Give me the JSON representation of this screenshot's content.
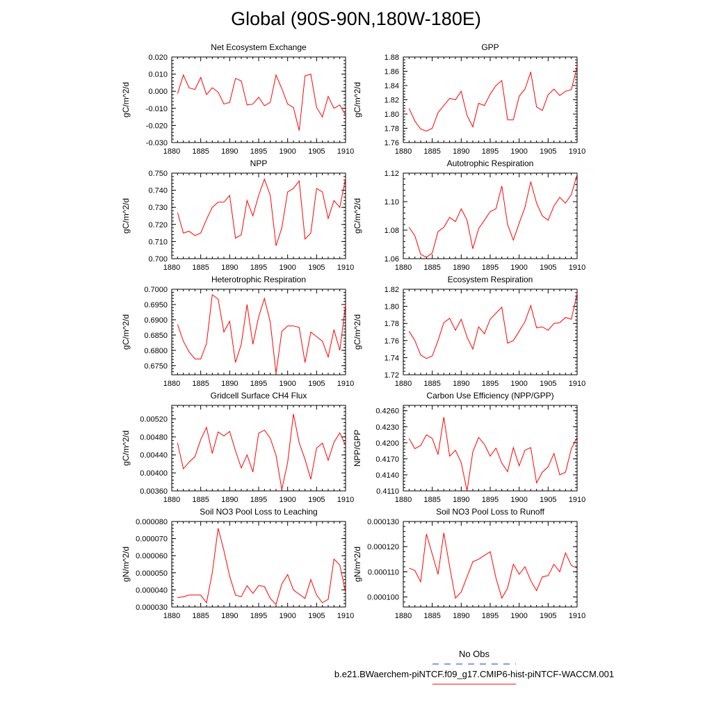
{
  "title": "Global (90S-90N,180W-180E)",
  "legend": {
    "obs_label": "No Obs",
    "obs_color": "#2b2bd9",
    "case_label": "b.e21.BWaerchem-piNTCF.f09_g17.CMIP6-hist-piNTCF-WACCM.001",
    "case_color": "#ff0000"
  },
  "chart_data": [
    {
      "type": "line",
      "title": "Net Ecosystem Exchange",
      "ylabel": "gC/m^2/d",
      "xlim": [
        1880,
        1910
      ],
      "ylim": [
        -0.03,
        0.02
      ],
      "x_ticks": [
        "1880",
        "1885",
        "1890",
        "1895",
        "1900",
        "1905",
        "1910"
      ],
      "y_ticks": [
        "-0.030",
        "-0.020",
        "-0.010",
        "0.000",
        "0.010",
        "0.020"
      ],
      "y_tick_values": [
        -0.03,
        -0.02,
        -0.01,
        0,
        0.01,
        0.02
      ],
      "x_start": 1881,
      "values": [
        -0.0015,
        0.0095,
        0.002,
        0.001,
        0.008,
        -0.002,
        0.002,
        -0.0005,
        -0.0075,
        -0.0065,
        0.0075,
        0.006,
        -0.008,
        -0.0075,
        -0.0035,
        -0.0085,
        -0.0065,
        0.0095,
        0.0015,
        -0.0075,
        -0.0095,
        -0.023,
        0.009,
        0.01,
        -0.0095,
        -0.015,
        -0.003,
        -0.01,
        -0.008,
        -0.014
      ]
    },
    {
      "type": "line",
      "title": "GPP",
      "ylabel": "gC/m^2/d",
      "xlim": [
        1880,
        1910
      ],
      "ylim": [
        1.76,
        1.88
      ],
      "x_ticks": [
        "1880",
        "1885",
        "1890",
        "1895",
        "1900",
        "1905",
        "1910"
      ],
      "y_ticks": [
        "1.76",
        "1.78",
        "1.80",
        "1.82",
        "1.84",
        "1.86",
        "1.88"
      ],
      "y_tick_values": [
        1.76,
        1.78,
        1.8,
        1.82,
        1.84,
        1.86,
        1.88
      ],
      "x_start": 1881,
      "values": [
        1.808,
        1.79,
        1.779,
        1.776,
        1.78,
        1.802,
        1.812,
        1.822,
        1.82,
        1.832,
        1.798,
        1.782,
        1.815,
        1.812,
        1.828,
        1.84,
        1.847,
        1.792,
        1.792,
        1.825,
        1.835,
        1.859,
        1.81,
        1.805,
        1.827,
        1.835,
        1.826,
        1.832,
        1.834,
        1.867
      ]
    },
    {
      "type": "line",
      "title": "NPP",
      "ylabel": "gC/m^2/d",
      "xlim": [
        1880,
        1910
      ],
      "ylim": [
        0.7,
        0.75
      ],
      "x_ticks": [
        "1880",
        "1885",
        "1890",
        "1895",
        "1900",
        "1905",
        "1910"
      ],
      "y_ticks": [
        "0.700",
        "0.710",
        "0.720",
        "0.730",
        "0.740",
        "0.750"
      ],
      "y_tick_values": [
        0.7,
        0.71,
        0.72,
        0.73,
        0.74,
        0.75
      ],
      "x_start": 1881,
      "values": [
        0.727,
        0.715,
        0.716,
        0.7135,
        0.715,
        0.723,
        0.73,
        0.733,
        0.733,
        0.737,
        0.712,
        0.714,
        0.734,
        0.725,
        0.737,
        0.7465,
        0.737,
        0.7075,
        0.718,
        0.739,
        0.741,
        0.7455,
        0.7115,
        0.715,
        0.741,
        0.739,
        0.7235,
        0.734,
        0.73,
        0.747
      ]
    },
    {
      "type": "line",
      "title": "Autotrophic Respiration",
      "ylabel": "gC/m^2/d",
      "xlim": [
        1880,
        1910
      ],
      "ylim": [
        1.06,
        1.12
      ],
      "x_ticks": [
        "1880",
        "1885",
        "1890",
        "1895",
        "1900",
        "1905",
        "1910"
      ],
      "y_ticks": [
        "1.06",
        "1.08",
        "1.10",
        "1.12"
      ],
      "y_tick_values": [
        1.06,
        1.08,
        1.1,
        1.12
      ],
      "x_start": 1881,
      "values": [
        1.082,
        1.076,
        1.063,
        1.061,
        1.064,
        1.079,
        1.082,
        1.089,
        1.086,
        1.095,
        1.087,
        1.067,
        1.081,
        1.087,
        1.093,
        1.095,
        1.111,
        1.084,
        1.073,
        1.085,
        1.096,
        1.114,
        1.099,
        1.09,
        1.087,
        1.097,
        1.103,
        1.099,
        1.105,
        1.119
      ]
    },
    {
      "type": "line",
      "title": "Heterotrophic Respiration",
      "ylabel": "gC/m^2/d",
      "xlim": [
        1880,
        1910
      ],
      "ylim": [
        0.672,
        0.7
      ],
      "x_ticks": [
        "1880",
        "1885",
        "1890",
        "1895",
        "1900",
        "1905",
        "1910"
      ],
      "y_ticks": [
        "0.6750",
        "0.6800",
        "0.6850",
        "0.6900",
        "0.6950",
        "0.7000"
      ],
      "y_tick_values": [
        0.675,
        0.68,
        0.685,
        0.69,
        0.695,
        0.7
      ],
      "x_start": 1881,
      "values": [
        0.6885,
        0.683,
        0.6795,
        0.6772,
        0.6772,
        0.6822,
        0.6982,
        0.6968,
        0.686,
        0.6895,
        0.676,
        0.682,
        0.695,
        0.682,
        0.691,
        0.697,
        0.6892,
        0.6725,
        0.6862,
        0.688,
        0.688,
        0.6875,
        0.676,
        0.686,
        0.6845,
        0.683,
        0.6778,
        0.6868,
        0.68,
        0.695
      ]
    },
    {
      "type": "line",
      "title": "Ecosystem Respiration",
      "ylabel": "gC/m^2/d",
      "xlim": [
        1880,
        1910
      ],
      "ylim": [
        1.72,
        1.82
      ],
      "x_ticks": [
        "1880",
        "1885",
        "1890",
        "1895",
        "1900",
        "1905",
        "1910"
      ],
      "y_ticks": [
        "1.72",
        "1.74",
        "1.76",
        "1.78",
        "1.80",
        "1.82"
      ],
      "y_tick_values": [
        1.72,
        1.74,
        1.76,
        1.78,
        1.8,
        1.82
      ],
      "x_start": 1881,
      "values": [
        1.771,
        1.76,
        1.743,
        1.739,
        1.742,
        1.76,
        1.781,
        1.786,
        1.772,
        1.785,
        1.764,
        1.75,
        1.776,
        1.768,
        1.785,
        1.792,
        1.799,
        1.757,
        1.76,
        1.771,
        1.782,
        1.801,
        1.775,
        1.776,
        1.772,
        1.78,
        1.781,
        1.787,
        1.785,
        1.815
      ]
    },
    {
      "type": "line",
      "title": "Gridcell Surface CH4 Flux",
      "ylabel": "gC/m^2/d",
      "xlim": [
        1880,
        1910
      ],
      "ylim": [
        0.0036,
        0.0055
      ],
      "x_ticks": [
        "1880",
        "1885",
        "1890",
        "1895",
        "1900",
        "1905",
        "1910"
      ],
      "y_ticks": [
        "0.00360",
        "0.00400",
        "0.00440",
        "0.00480",
        "0.00520"
      ],
      "y_tick_values": [
        0.0036,
        0.004,
        0.0044,
        0.0048,
        0.0052
      ],
      "x_start": 1881,
      "values": [
        0.00467,
        0.00409,
        0.00424,
        0.00436,
        0.00474,
        0.00501,
        0.00443,
        0.00491,
        0.00482,
        0.00492,
        0.00449,
        0.00411,
        0.0044,
        0.00402,
        0.00488,
        0.00495,
        0.00477,
        0.00439,
        0.00363,
        0.00423,
        0.00531,
        0.00467,
        0.0043,
        0.00386,
        0.00455,
        0.00466,
        0.00428,
        0.00468,
        0.00489,
        0.00461
      ]
    },
    {
      "type": "line",
      "title": "Carbon Use Efficiency (NPP/GPP)",
      "ylabel": "NPP/GPP",
      "xlim": [
        1880,
        1910
      ],
      "ylim": [
        0.411,
        0.427
      ],
      "x_ticks": [
        "1880",
        "1885",
        "1890",
        "1895",
        "1900",
        "1905",
        "1910"
      ],
      "y_ticks": [
        "0.4110",
        "0.4140",
        "0.4170",
        "0.4200",
        "0.4230",
        "0.4260"
      ],
      "y_tick_values": [
        0.411,
        0.414,
        0.417,
        0.42,
        0.423,
        0.426
      ],
      "x_start": 1881,
      "values": [
        0.4208,
        0.4189,
        0.4195,
        0.4215,
        0.4208,
        0.4178,
        0.4248,
        0.4175,
        0.4186,
        0.4163,
        0.411,
        0.4183,
        0.421,
        0.4197,
        0.4175,
        0.419,
        0.4162,
        0.4146,
        0.4191,
        0.4157,
        0.4186,
        0.4191,
        0.4125,
        0.4145,
        0.4155,
        0.418,
        0.414,
        0.4145,
        0.4189,
        0.421
      ]
    },
    {
      "type": "line",
      "title": "Soil NO3 Pool Loss to Leaching",
      "ylabel": "gN/m^2/d",
      "xlim": [
        1880,
        1910
      ],
      "ylim": [
        3e-05,
        8e-05
      ],
      "x_ticks": [
        "1880",
        "1885",
        "1890",
        "1895",
        "1900",
        "1905",
        "1910"
      ],
      "y_ticks": [
        "0.000030",
        "0.000040",
        "0.000050",
        "0.000060",
        "0.000070",
        "0.000080"
      ],
      "y_tick_values": [
        3e-05,
        4e-05,
        5e-05,
        6e-05,
        7e-05,
        8e-05
      ],
      "x_start": 1881,
      "values": [
        3.55e-05,
        3.6e-05,
        3.7e-05,
        3.7e-05,
        3.7e-05,
        3.25e-05,
        5e-05,
        7.6e-05,
        6.3e-05,
        4.8e-05,
        3.7e-05,
        3.6e-05,
        4.25e-05,
        3.8e-05,
        4.25e-05,
        4.2e-05,
        3.5e-05,
        3.15e-05,
        4.35e-05,
        4.9e-05,
        4e-05,
        3.75e-05,
        3.5e-05,
        4.6e-05,
        3.7e-05,
        3.25e-05,
        3.45e-05,
        5.8e-05,
        5.45e-05,
        3.85e-05
      ]
    },
    {
      "type": "line",
      "title": "Soil NO3 Pool Loss to Runoff",
      "ylabel": "gN/m^2/d",
      "xlim": [
        1880,
        1910
      ],
      "ylim": [
        9.6e-05,
        0.00013
      ],
      "x_ticks": [
        "1880",
        "1885",
        "1890",
        "1895",
        "1900",
        "1905",
        "1910"
      ],
      "y_ticks": [
        "0.000100",
        "0.000110",
        "0.000120",
        "0.000130"
      ],
      "y_tick_values": [
        0.0001,
        0.00011,
        0.00012,
        0.00013
      ],
      "x_start": 1881,
      "values": [
        0.0001115,
        0.0001105,
        0.000106,
        0.000125,
        0.000117,
        0.000109,
        0.0001255,
        0.000112,
        9.95e-05,
        0.000102,
        0.000108,
        0.000114,
        0.000115,
        0.0001165,
        0.000118,
        0.0001075,
        9.95e-05,
        0.0001035,
        0.000113,
        0.000109,
        0.000112,
        0.0001065,
        0.0001025,
        0.000108,
        0.0001085,
        0.000113,
        0.00011,
        0.0001175,
        0.0001125,
        0.0001115
      ]
    }
  ]
}
